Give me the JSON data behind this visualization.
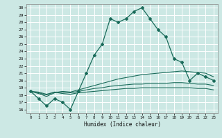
{
  "xlabel": "Humidex (Indice chaleur)",
  "bg_color": "#cce8e4",
  "line_color": "#1a6b5a",
  "xlim": [
    -0.5,
    23.5
  ],
  "ylim": [
    15.5,
    30.5
  ],
  "yticks": [
    16,
    17,
    18,
    19,
    20,
    21,
    22,
    23,
    24,
    25,
    26,
    27,
    28,
    29,
    30
  ],
  "xticks": [
    0,
    1,
    2,
    3,
    4,
    5,
    6,
    7,
    8,
    9,
    10,
    11,
    12,
    13,
    14,
    15,
    16,
    17,
    18,
    19,
    20,
    21,
    22,
    23
  ],
  "series": {
    "main": [
      18.5,
      17.5,
      16.5,
      17.5,
      17.0,
      16.0,
      18.5,
      21.0,
      23.5,
      25.0,
      28.5,
      28.0,
      28.5,
      29.5,
      30.0,
      28.5,
      27.0,
      26.0,
      23.0,
      22.5,
      20.0,
      21.0,
      20.5,
      20.0
    ],
    "line2": [
      18.5,
      18.2,
      17.8,
      18.3,
      18.5,
      18.4,
      18.7,
      19.0,
      19.3,
      19.6,
      19.9,
      20.2,
      20.4,
      20.6,
      20.8,
      20.9,
      21.0,
      21.1,
      21.2,
      21.3,
      21.2,
      21.1,
      21.0,
      20.5
    ],
    "line3": [
      18.5,
      18.3,
      18.0,
      18.4,
      18.4,
      18.3,
      18.5,
      18.7,
      18.9,
      19.0,
      19.2,
      19.3,
      19.4,
      19.5,
      19.5,
      19.6,
      19.6,
      19.6,
      19.7,
      19.7,
      19.6,
      19.5,
      19.5,
      19.3
    ],
    "line4": [
      18.5,
      18.4,
      18.1,
      18.4,
      18.2,
      18.1,
      18.3,
      18.4,
      18.5,
      18.6,
      18.7,
      18.8,
      18.9,
      18.9,
      19.0,
      19.0,
      19.0,
      19.0,
      19.0,
      19.0,
      19.0,
      18.9,
      18.9,
      18.7
    ]
  }
}
